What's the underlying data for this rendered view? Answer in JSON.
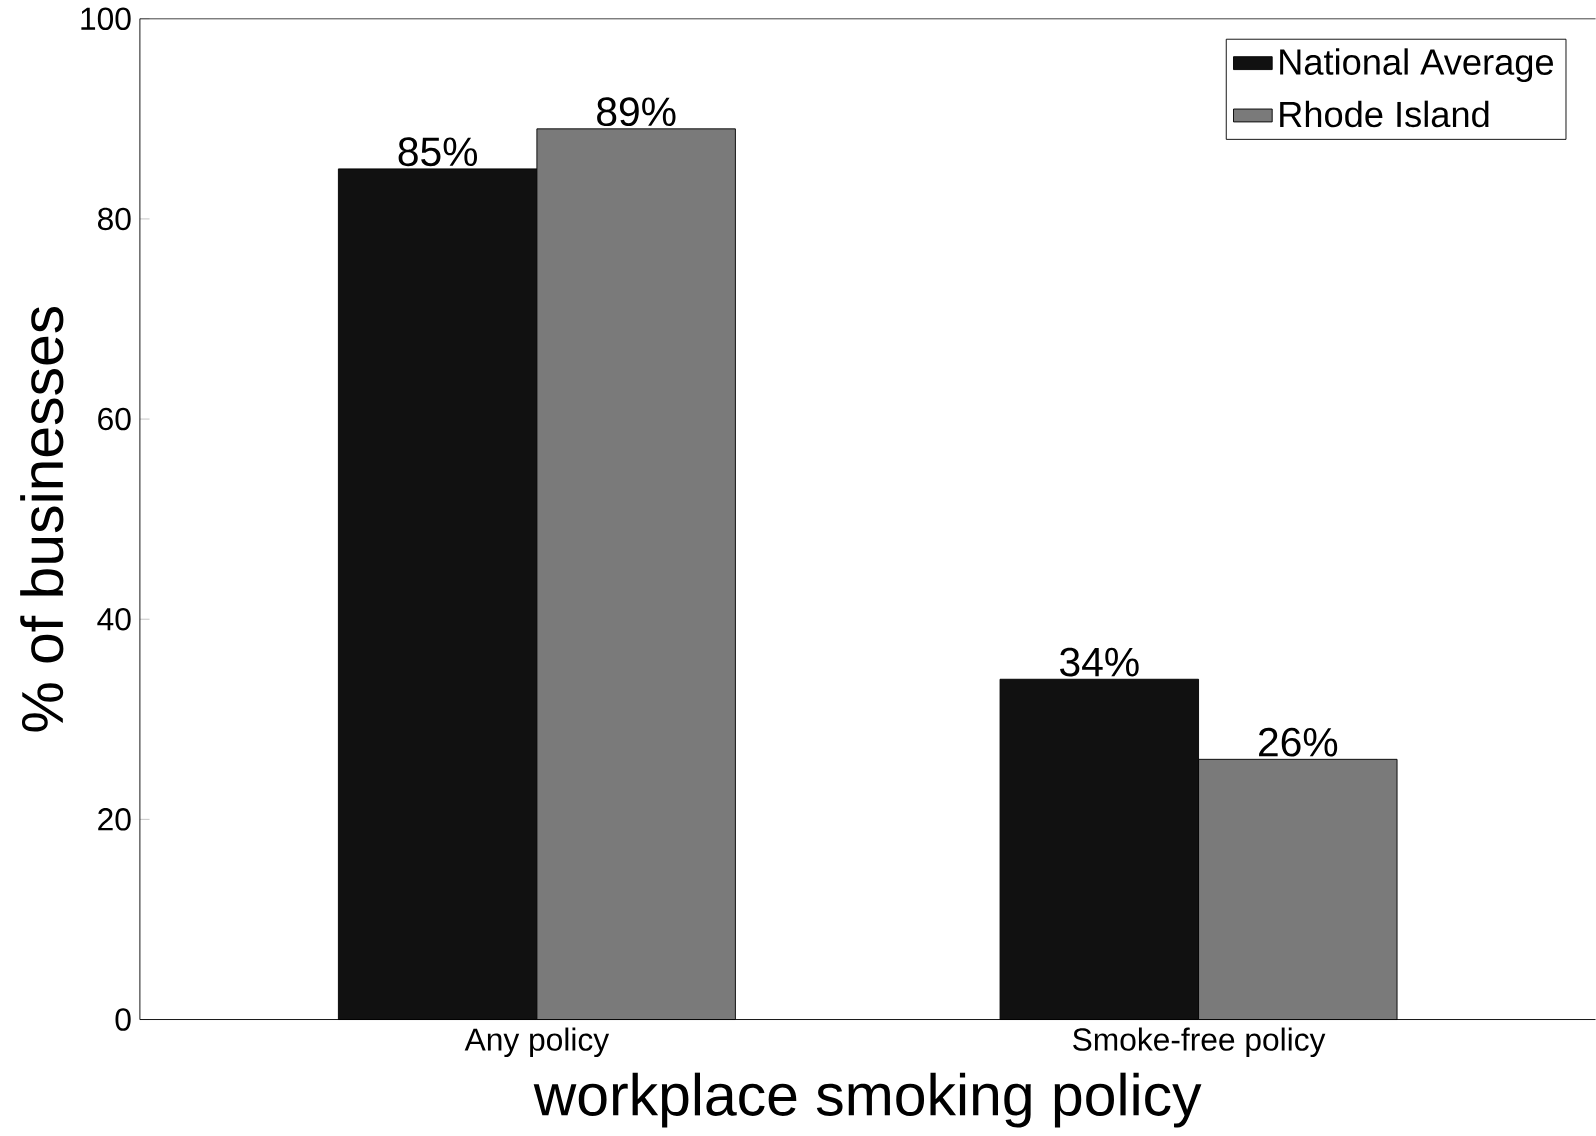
{
  "chart_data": {
    "type": "bar",
    "xlabel": "workplace smoking policy",
    "ylabel": "% of businesses",
    "categories": [
      "Any policy",
      "Smoke-free policy"
    ],
    "series": [
      {
        "name": "National Average",
        "color": "#111111",
        "values": [
          85,
          34
        ],
        "value_labels": [
          "85%",
          "34%"
        ]
      },
      {
        "name": "Rhode Island",
        "color": "#7a7a7a",
        "values": [
          89,
          26
        ],
        "value_labels": [
          "89%",
          "26%"
        ]
      }
    ],
    "ylim": [
      0,
      100
    ],
    "yticks": [
      0,
      20,
      40,
      60,
      80,
      100
    ],
    "legend": "top right"
  }
}
